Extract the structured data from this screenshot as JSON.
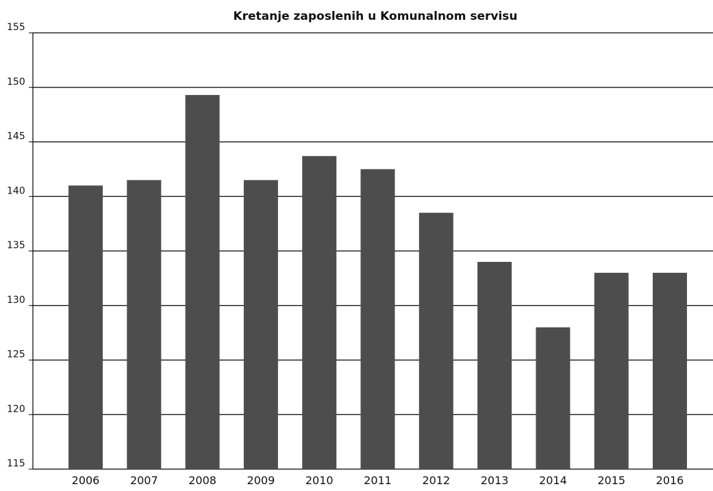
{
  "chart_data": {
    "type": "bar",
    "title": "Kretanje zaposlenih u Komunalnom servisu",
    "categories": [
      "2006",
      "2007",
      "2008",
      "2009",
      "2010",
      "2011",
      "2012",
      "2013",
      "2014",
      "2015",
      "2016"
    ],
    "values": [
      141,
      141.5,
      149.3,
      141.5,
      143.7,
      142.5,
      138.5,
      134,
      128,
      133,
      133
    ],
    "color": "#4d4d4d",
    "ylim": [
      115,
      155
    ],
    "yticks": [
      115,
      120,
      125,
      130,
      135,
      140,
      145,
      150,
      155
    ],
    "grid": true
  }
}
